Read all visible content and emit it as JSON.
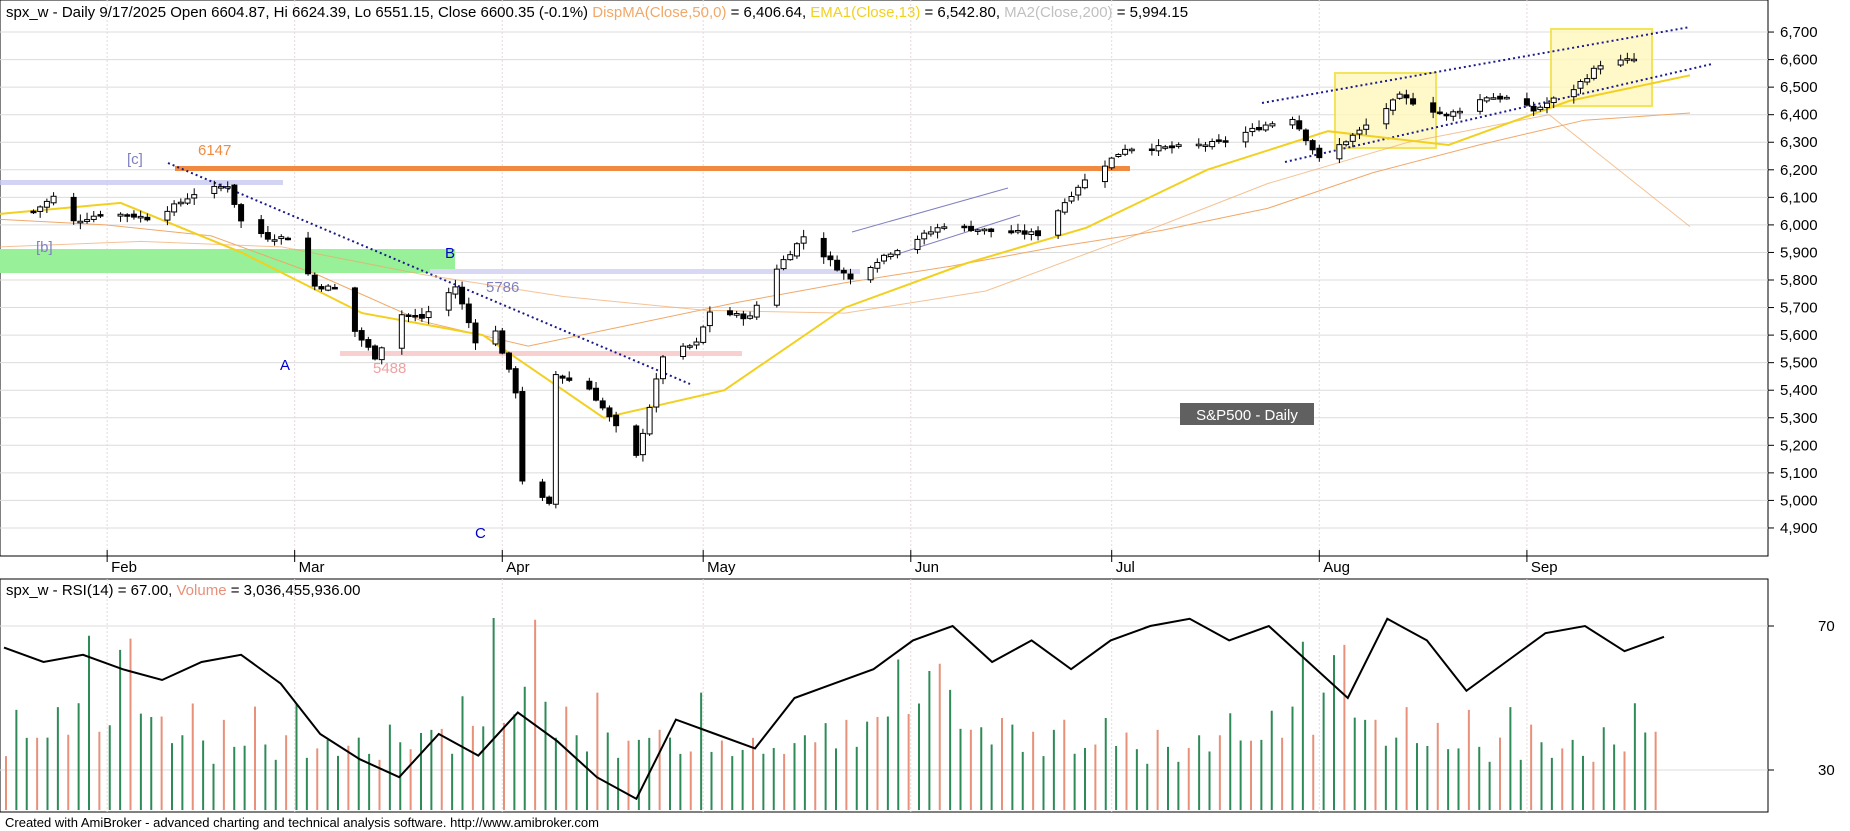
{
  "header": {
    "price_title": "spx_w - Daily 9/17/2025 Open 6604.87, Hi 6624.39, Lo 6551.15, Close 6600.35 (-0.1%)",
    "ind1_label": "DispMA(Close,50,0)",
    "ind1_value": "= 6,406.64,",
    "ind2_label": "EMA1(Close,13)",
    "ind2_value": "= 6,542.80,",
    "ind3_label": "MA2(Close,200)",
    "ind3_value": "= 5,994.15",
    "rsi_title": "spx_w - RSI(14) = 67.00,",
    "vol_label": "Volume",
    "vol_value": "= 3,036,455,936.00",
    "footer": "Created with AmiBroker - advanced charting and technical analysis software. http://www.amibroker.com"
  },
  "colors": {
    "ma50": "#f0a868",
    "ema13": "#f2d020",
    "ma200": "#c0c0c0",
    "up_volume": "#2e8b57",
    "down_volume": "#e8907a",
    "zone_green": "#98f098",
    "line_6147": "#f08a40",
    "label_5786": "#8080c0",
    "label_5488": "#f0a0a0",
    "wave_label": "#0000cc",
    "badge_bg": "#606060"
  },
  "chart_data": [
    {
      "type": "candlestick",
      "title": "spx_w - Daily",
      "x_month_labels": [
        "Feb",
        "Mar",
        "Apr",
        "May",
        "Jun",
        "Jul",
        "Aug",
        "Sep"
      ],
      "y_ticks": [
        "6,700",
        "6,600",
        "6,500",
        "6,400",
        "6,300",
        "6,200",
        "6,100",
        "6,000",
        "5,900",
        "5,800",
        "5,700",
        "5,600",
        "5,500",
        "5,400",
        "5,300",
        "5,200",
        "5,100",
        "5,000",
        "4,900"
      ],
      "ylim": [
        4820,
        6780
      ],
      "close_path": [
        [
          "2025-01-21",
          6049
        ],
        [
          "2025-01-24",
          6101
        ],
        [
          "2025-01-27",
          6012
        ],
        [
          "2025-01-31",
          6040
        ],
        [
          "2025-02-04",
          6037
        ],
        [
          "2025-02-07",
          6025
        ],
        [
          "2025-02-11",
          6068
        ],
        [
          "2025-02-14",
          6114
        ],
        [
          "2025-02-19",
          6144
        ],
        [
          "2025-02-21",
          6013
        ],
        [
          "2025-02-25",
          5955
        ],
        [
          "2025-02-28",
          5954
        ],
        [
          "2025-03-04",
          5778
        ],
        [
          "2025-03-07",
          5770
        ],
        [
          "2025-03-10",
          5614
        ],
        [
          "2025-03-13",
          5521
        ],
        [
          "2025-03-17",
          5675
        ],
        [
          "2025-03-20",
          5662
        ],
        [
          "2025-03-25",
          5776
        ],
        [
          "2025-03-28",
          5580
        ],
        [
          "2025-03-31",
          5612
        ],
        [
          "2025-04-03",
          5396
        ],
        [
          "2025-04-04",
          5074
        ],
        [
          "2025-04-08",
          4982
        ],
        [
          "2025-04-09",
          5457
        ],
        [
          "2025-04-14",
          5406
        ],
        [
          "2025-04-21",
          5158
        ],
        [
          "2025-04-25",
          5525
        ],
        [
          "2025-04-30",
          5569
        ],
        [
          "2025-05-02",
          5686
        ],
        [
          "2025-05-08",
          5664
        ],
        [
          "2025-05-12",
          5844
        ],
        [
          "2025-05-16",
          5958
        ],
        [
          "2025-05-21",
          5845
        ],
        [
          "2025-05-23",
          5802
        ],
        [
          "2025-05-28",
          5889
        ],
        [
          "2025-06-06",
          6000
        ],
        [
          "2025-06-13",
          5977
        ],
        [
          "2025-06-20",
          5967
        ],
        [
          "2025-06-26",
          6141
        ],
        [
          "2025-07-03",
          6279
        ],
        [
          "2025-07-10",
          6280
        ],
        [
          "2025-07-17",
          6297
        ],
        [
          "2025-07-24",
          6363
        ],
        [
          "2025-07-28",
          6389
        ],
        [
          "2025-08-01",
          6238
        ],
        [
          "2025-08-07",
          6340
        ],
        [
          "2025-08-13",
          6466
        ],
        [
          "2025-08-20",
          6396
        ],
        [
          "2025-08-26",
          6465
        ],
        [
          "2025-08-29",
          6460
        ],
        [
          "2025-09-02",
          6415
        ],
        [
          "2025-09-08",
          6495
        ],
        [
          "2025-09-12",
          6584
        ],
        [
          "2025-09-17",
          6600
        ]
      ],
      "series": [
        {
          "name": "DispMA(Close,50,0)",
          "values": [
            6020,
            6000,
            5960,
            5820,
            5650,
            5560,
            5640,
            5720,
            5790,
            5850,
            5920,
            5980,
            6060,
            6190,
            6290,
            6380,
            6406
          ]
        },
        {
          "name": "EMA1(Close,13)",
          "values": [
            6040,
            6080,
            5900,
            5680,
            5600,
            5300,
            5400,
            5700,
            5860,
            5990,
            6200,
            6340,
            6290,
            6450,
            6543
          ]
        },
        {
          "name": "MA2(Close,200)",
          "values": [
            5920,
            5940,
            5920,
            5820,
            5740,
            5690,
            5680,
            5760,
            5950,
            6150,
            6300,
            6400,
            5994
          ]
        }
      ],
      "annotations": [
        {
          "text": "[c]",
          "value": 6147
        },
        {
          "text": "6147",
          "value": 6147
        },
        {
          "text": "[b]",
          "value": 5820
        },
        {
          "text": "B",
          "value": 5786
        },
        {
          "text": "5786",
          "value": 5786
        },
        {
          "text": "A",
          "value": 5488
        },
        {
          "text": "5488",
          "value": 5488
        },
        {
          "text": "C",
          "value": 4835
        },
        {
          "text": "S&P500 - Daily"
        }
      ],
      "reference_levels": [
        6147,
        5786,
        5488
      ]
    },
    {
      "type": "line",
      "title": "spx_w - RSI(14)",
      "y_ticks": [
        "70",
        "30"
      ],
      "ylim": [
        20,
        80
      ],
      "series": [
        {
          "name": "RSI(14)",
          "values": [
            64,
            60,
            62,
            58,
            55,
            60,
            62,
            54,
            40,
            33,
            28,
            40,
            34,
            46,
            38,
            28,
            22,
            44,
            40,
            36,
            50,
            54,
            58,
            66,
            70,
            60,
            66,
            58,
            66,
            70,
            72,
            66,
            70,
            60,
            50,
            72,
            66,
            52,
            60,
            68,
            70,
            63,
            67
          ]
        }
      ]
    },
    {
      "type": "bar",
      "title": "Volume",
      "values_relative": [
        0.35,
        0.5,
        0.4,
        0.45,
        0.35,
        0.55,
        0.45,
        0.5,
        0.9,
        0.45,
        0.55,
        0.8,
        0.95,
        0.6,
        0.45,
        0.5,
        0.4,
        0.35,
        0.55,
        0.4,
        0.3,
        0.45,
        0.35,
        0.4,
        0.5,
        0.35,
        0.3,
        0.35,
        0.55,
        0.3,
        0.4,
        0.35,
        0.3,
        0.4,
        0.35,
        0.3,
        0.3,
        0.4,
        0.35
      ]
    }
  ]
}
